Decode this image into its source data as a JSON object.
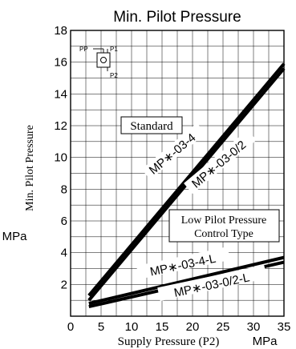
{
  "chart_data": {
    "type": "line",
    "title": "Min. Pilot Pressure",
    "xlabel": "Supply Pressure (P2)",
    "xunit": "MPa",
    "ylabel": "Min. Pilot Pressure",
    "yunit": "MPa",
    "xlim": [
      0,
      35
    ],
    "ylim": [
      0,
      18
    ],
    "x_ticks": [
      "0",
      "5",
      "10",
      "15",
      "20",
      "25",
      "30",
      "35"
    ],
    "y_ticks": [
      "2",
      "4",
      "6",
      "8",
      "10",
      "12",
      "14",
      "16",
      "18"
    ],
    "grid": true,
    "series": [
      {
        "name": "MP∗-03-4",
        "x": [
          3,
          35
        ],
        "y": [
          1.3,
          15.9
        ]
      },
      {
        "name": "MP∗-03-0/2",
        "x": [
          3,
          35
        ],
        "y": [
          1.0,
          15.6
        ]
      },
      {
        "name": "MP∗-03-4-L",
        "x": [
          3,
          35
        ],
        "y": [
          0.8,
          3.7
        ]
      },
      {
        "name": "MP∗-03-0/2-L",
        "x": [
          3,
          35
        ],
        "y": [
          0.6,
          3.4
        ]
      }
    ],
    "annotations": {
      "standard": "Standard",
      "low_line1": "Low Pilot Pressure",
      "low_line2": "Control Type"
    },
    "symbol": {
      "pp": "PP",
      "p1": "P1",
      "p2": "P2"
    }
  }
}
